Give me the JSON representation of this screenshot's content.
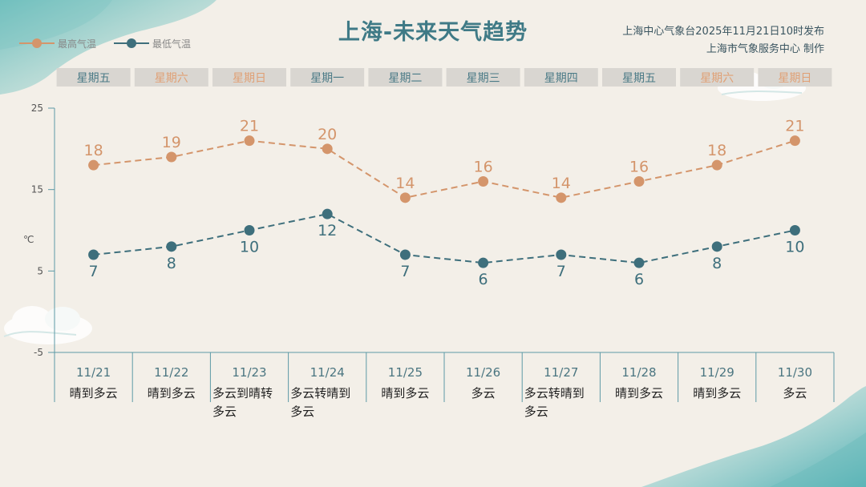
{
  "title": "上海-未来天气趋势",
  "publisher": {
    "line1": "上海中心气象台2025年11月21日10时发布",
    "line2": "上海市气象服务中心  制作"
  },
  "legend": {
    "high": "最高气温",
    "low": "最低气温"
  },
  "colors": {
    "high": "#d4956b",
    "low": "#3e6f7c",
    "weekday": "#4a7a86",
    "weekend": "#e0a075",
    "tab_bg": "#d9d6d1",
    "axis": "#5d9aa6",
    "date_text": "#4a7580",
    "weather_text": "#1f1f1f",
    "title": "#3f7a86"
  },
  "chart_data": {
    "type": "line",
    "title": "上海-未来天气趋势",
    "ylabel": "℃",
    "ylim": [
      -5,
      25
    ],
    "yticks": [
      -5,
      5,
      15,
      25
    ],
    "grid": false,
    "legend_position": "top-left",
    "weekdays": [
      "星期五",
      "星期六",
      "星期日",
      "星期一",
      "星期二",
      "星期三",
      "星期四",
      "星期五",
      "星期六",
      "星期日"
    ],
    "weekend_flags": [
      false,
      true,
      true,
      false,
      false,
      false,
      false,
      false,
      true,
      true
    ],
    "categories": [
      "11/21",
      "11/22",
      "11/23",
      "11/24",
      "11/25",
      "11/26",
      "11/27",
      "11/28",
      "11/29",
      "11/30"
    ],
    "weather": [
      [
        "晴到多云"
      ],
      [
        "晴到多云"
      ],
      [
        "多云到晴转",
        "多云"
      ],
      [
        "多云转晴到",
        "多云"
      ],
      [
        "晴到多云"
      ],
      [
        "多云"
      ],
      [
        "多云转晴到",
        "多云"
      ],
      [
        "晴到多云"
      ],
      [
        "晴到多云"
      ],
      [
        "多云"
      ]
    ],
    "series": [
      {
        "name": "最高气温",
        "values": [
          18,
          19,
          21,
          20,
          14,
          16,
          14,
          16,
          18,
          21
        ]
      },
      {
        "name": "最低气温",
        "values": [
          7,
          8,
          10,
          12,
          7,
          6,
          7,
          6,
          8,
          10
        ]
      }
    ]
  }
}
